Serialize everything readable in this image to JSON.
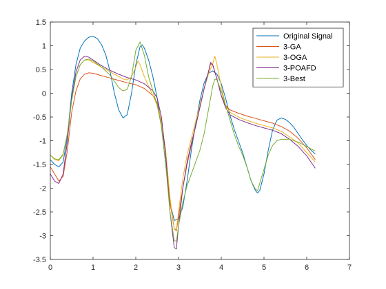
{
  "chart_data": {
    "type": "line",
    "title": "",
    "xlabel": "",
    "ylabel": "",
    "xlim": [
      0,
      7
    ],
    "ylim": [
      -3.5,
      1.5
    ],
    "xticks": [
      0,
      1,
      2,
      3,
      4,
      5,
      6,
      7
    ],
    "yticks": [
      -3.5,
      -3,
      -2.5,
      -2,
      -1.5,
      -1,
      -0.5,
      0,
      0.5,
      1,
      1.5
    ],
    "xtick_labels": [
      "0",
      "1",
      "2",
      "3",
      "4",
      "5",
      "6",
      "7"
    ],
    "ytick_labels": [
      "-3.5",
      "-3",
      "-2.5",
      "-2",
      "-1.5",
      "-1",
      "-0.5",
      "0",
      "0.5",
      "1",
      "1.5"
    ],
    "grid": false,
    "legend_position": "top-right",
    "series": [
      {
        "name": "Original Signal",
        "color": "#0072BD",
        "points": [
          [
            0.0,
            -1.4
          ],
          [
            0.1,
            -1.5
          ],
          [
            0.2,
            -1.55
          ],
          [
            0.3,
            -1.45
          ],
          [
            0.4,
            -0.9
          ],
          [
            0.5,
            0.0
          ],
          [
            0.6,
            0.6
          ],
          [
            0.7,
            0.95
          ],
          [
            0.8,
            1.1
          ],
          [
            0.9,
            1.18
          ],
          [
            1.0,
            1.2
          ],
          [
            1.1,
            1.15
          ],
          [
            1.2,
            1.02
          ],
          [
            1.3,
            0.8
          ],
          [
            1.4,
            0.45
          ],
          [
            1.5,
            0.0
          ],
          [
            1.6,
            -0.35
          ],
          [
            1.7,
            -0.52
          ],
          [
            1.8,
            -0.45
          ],
          [
            1.9,
            0.0
          ],
          [
            2.0,
            0.6
          ],
          [
            2.1,
            0.98
          ],
          [
            2.15,
            1.02
          ],
          [
            2.2,
            0.95
          ],
          [
            2.3,
            0.7
          ],
          [
            2.4,
            0.35
          ],
          [
            2.5,
            -0.1
          ],
          [
            2.6,
            -0.7
          ],
          [
            2.7,
            -1.5
          ],
          [
            2.8,
            -2.3
          ],
          [
            2.9,
            -2.68
          ],
          [
            3.0,
            -2.65
          ],
          [
            3.1,
            -2.4
          ],
          [
            3.2,
            -1.85
          ],
          [
            3.3,
            -1.2
          ],
          [
            3.4,
            -0.65
          ],
          [
            3.5,
            -0.15
          ],
          [
            3.6,
            0.22
          ],
          [
            3.7,
            0.42
          ],
          [
            3.8,
            0.47
          ],
          [
            3.9,
            0.4
          ],
          [
            4.0,
            0.2
          ],
          [
            4.1,
            -0.1
          ],
          [
            4.2,
            -0.45
          ],
          [
            4.3,
            -0.75
          ],
          [
            4.4,
            -1.0
          ],
          [
            4.5,
            -1.25
          ],
          [
            4.6,
            -1.55
          ],
          [
            4.7,
            -1.85
          ],
          [
            4.8,
            -2.05
          ],
          [
            4.85,
            -2.1
          ],
          [
            4.9,
            -2.05
          ],
          [
            5.0,
            -1.7
          ],
          [
            5.1,
            -1.2
          ],
          [
            5.2,
            -0.78
          ],
          [
            5.3,
            -0.57
          ],
          [
            5.4,
            -0.52
          ],
          [
            5.5,
            -0.55
          ],
          [
            5.6,
            -0.62
          ],
          [
            5.7,
            -0.72
          ],
          [
            5.8,
            -0.85
          ],
          [
            5.9,
            -0.98
          ],
          [
            6.0,
            -1.1
          ],
          [
            6.1,
            -1.2
          ],
          [
            6.2,
            -1.28
          ]
        ]
      },
      {
        "name": "3-GA",
        "color": "#D95319",
        "points": [
          [
            0.0,
            -1.55
          ],
          [
            0.1,
            -1.7
          ],
          [
            0.2,
            -1.85
          ],
          [
            0.3,
            -1.75
          ],
          [
            0.4,
            -1.2
          ],
          [
            0.5,
            -0.4
          ],
          [
            0.6,
            0.05
          ],
          [
            0.7,
            0.3
          ],
          [
            0.8,
            0.4
          ],
          [
            0.9,
            0.43
          ],
          [
            1.0,
            0.42
          ],
          [
            1.2,
            0.37
          ],
          [
            1.4,
            0.32
          ],
          [
            1.6,
            0.27
          ],
          [
            1.8,
            0.22
          ],
          [
            2.0,
            0.18
          ],
          [
            2.2,
            0.1
          ],
          [
            2.4,
            -0.05
          ],
          [
            2.5,
            -0.2
          ],
          [
            2.6,
            -0.6
          ],
          [
            2.7,
            -1.3
          ],
          [
            2.8,
            -2.3
          ],
          [
            2.9,
            -2.85
          ],
          [
            2.95,
            -2.9
          ],
          [
            3.0,
            -2.6
          ],
          [
            3.1,
            -2.0
          ],
          [
            3.2,
            -1.5
          ],
          [
            3.3,
            -1.1
          ],
          [
            3.4,
            -0.7
          ],
          [
            3.5,
            -0.3
          ],
          [
            3.6,
            0.1
          ],
          [
            3.7,
            0.45
          ],
          [
            3.75,
            0.62
          ],
          [
            3.8,
            0.6
          ],
          [
            3.9,
            0.3
          ],
          [
            4.0,
            -0.05
          ],
          [
            4.1,
            -0.25
          ],
          [
            4.2,
            -0.35
          ],
          [
            4.4,
            -0.42
          ],
          [
            4.6,
            -0.48
          ],
          [
            4.8,
            -0.53
          ],
          [
            5.0,
            -0.58
          ],
          [
            5.2,
            -0.63
          ],
          [
            5.4,
            -0.7
          ],
          [
            5.6,
            -0.8
          ],
          [
            5.8,
            -0.95
          ],
          [
            6.0,
            -1.15
          ],
          [
            6.2,
            -1.4
          ]
        ]
      },
      {
        "name": "3-OGA",
        "color": "#EDB120",
        "points": [
          [
            0.0,
            -1.3
          ],
          [
            0.1,
            -1.4
          ],
          [
            0.2,
            -1.42
          ],
          [
            0.3,
            -1.3
          ],
          [
            0.4,
            -0.85
          ],
          [
            0.5,
            -0.15
          ],
          [
            0.6,
            0.35
          ],
          [
            0.7,
            0.6
          ],
          [
            0.8,
            0.7
          ],
          [
            0.9,
            0.7
          ],
          [
            1.0,
            0.65
          ],
          [
            1.2,
            0.55
          ],
          [
            1.4,
            0.45
          ],
          [
            1.6,
            0.35
          ],
          [
            1.7,
            0.3
          ],
          [
            1.8,
            0.28
          ],
          [
            1.9,
            0.35
          ],
          [
            2.0,
            0.55
          ],
          [
            2.05,
            0.68
          ],
          [
            2.1,
            0.6
          ],
          [
            2.2,
            0.35
          ],
          [
            2.3,
            0.15
          ],
          [
            2.4,
            -0.05
          ],
          [
            2.5,
            -0.25
          ],
          [
            2.6,
            -0.6
          ],
          [
            2.7,
            -1.2
          ],
          [
            2.8,
            -2.2
          ],
          [
            2.9,
            -2.85
          ],
          [
            2.95,
            -2.87
          ],
          [
            3.0,
            -2.5
          ],
          [
            3.1,
            -1.8
          ],
          [
            3.2,
            -1.3
          ],
          [
            3.3,
            -0.95
          ],
          [
            3.4,
            -0.6
          ],
          [
            3.5,
            -0.25
          ],
          [
            3.6,
            0.1
          ],
          [
            3.7,
            0.4
          ],
          [
            3.8,
            0.62
          ],
          [
            3.85,
            0.78
          ],
          [
            3.9,
            0.6
          ],
          [
            4.0,
            0.15
          ],
          [
            4.1,
            -0.25
          ],
          [
            4.2,
            -0.4
          ],
          [
            4.4,
            -0.5
          ],
          [
            4.6,
            -0.57
          ],
          [
            4.8,
            -0.63
          ],
          [
            5.0,
            -0.68
          ],
          [
            5.2,
            -0.73
          ],
          [
            5.4,
            -0.8
          ],
          [
            5.6,
            -0.92
          ],
          [
            5.8,
            -1.05
          ],
          [
            6.0,
            -1.25
          ],
          [
            6.2,
            -1.45
          ]
        ]
      },
      {
        "name": "3-POAFD",
        "color": "#7E2F8E",
        "points": [
          [
            0.0,
            -1.7
          ],
          [
            0.1,
            -1.85
          ],
          [
            0.2,
            -1.9
          ],
          [
            0.3,
            -1.7
          ],
          [
            0.4,
            -1.0
          ],
          [
            0.5,
            -0.1
          ],
          [
            0.6,
            0.45
          ],
          [
            0.7,
            0.7
          ],
          [
            0.8,
            0.78
          ],
          [
            0.9,
            0.76
          ],
          [
            1.0,
            0.7
          ],
          [
            1.2,
            0.58
          ],
          [
            1.4,
            0.48
          ],
          [
            1.6,
            0.4
          ],
          [
            1.8,
            0.33
          ],
          [
            2.0,
            0.28
          ],
          [
            2.2,
            0.2
          ],
          [
            2.4,
            0.05
          ],
          [
            2.5,
            -0.1
          ],
          [
            2.6,
            -0.5
          ],
          [
            2.7,
            -1.3
          ],
          [
            2.8,
            -2.5
          ],
          [
            2.9,
            -3.25
          ],
          [
            2.95,
            -3.28
          ],
          [
            3.0,
            -2.8
          ],
          [
            3.1,
            -2.0
          ],
          [
            3.2,
            -1.45
          ],
          [
            3.3,
            -1.05
          ],
          [
            3.4,
            -0.7
          ],
          [
            3.5,
            -0.3
          ],
          [
            3.6,
            0.1
          ],
          [
            3.7,
            0.45
          ],
          [
            3.75,
            0.65
          ],
          [
            3.8,
            0.6
          ],
          [
            3.9,
            0.3
          ],
          [
            4.0,
            -0.05
          ],
          [
            4.1,
            -0.3
          ],
          [
            4.2,
            -0.45
          ],
          [
            4.4,
            -0.55
          ],
          [
            4.6,
            -0.62
          ],
          [
            4.8,
            -0.68
          ],
          [
            5.0,
            -0.73
          ],
          [
            5.2,
            -0.78
          ],
          [
            5.4,
            -0.85
          ],
          [
            5.6,
            -0.97
          ],
          [
            5.8,
            -1.12
          ],
          [
            6.0,
            -1.32
          ],
          [
            6.2,
            -1.58
          ]
        ]
      },
      {
        "name": "3-Best",
        "color": "#77AC30",
        "points": [
          [
            0.0,
            -1.3
          ],
          [
            0.1,
            -1.38
          ],
          [
            0.2,
            -1.4
          ],
          [
            0.3,
            -1.28
          ],
          [
            0.4,
            -0.85
          ],
          [
            0.5,
            -0.15
          ],
          [
            0.6,
            0.35
          ],
          [
            0.7,
            0.6
          ],
          [
            0.8,
            0.7
          ],
          [
            0.9,
            0.72
          ],
          [
            1.0,
            0.68
          ],
          [
            1.2,
            0.55
          ],
          [
            1.4,
            0.38
          ],
          [
            1.5,
            0.25
          ],
          [
            1.6,
            0.12
          ],
          [
            1.7,
            0.05
          ],
          [
            1.8,
            0.08
          ],
          [
            1.9,
            0.35
          ],
          [
            2.0,
            0.9
          ],
          [
            2.1,
            1.08
          ],
          [
            2.2,
            0.8
          ],
          [
            2.3,
            0.35
          ],
          [
            2.4,
            0.05
          ],
          [
            2.5,
            -0.25
          ],
          [
            2.6,
            -0.7
          ],
          [
            2.7,
            -1.5
          ],
          [
            2.8,
            -2.5
          ],
          [
            2.9,
            -3.1
          ],
          [
            2.95,
            -3.12
          ],
          [
            3.0,
            -2.8
          ],
          [
            3.1,
            -2.3
          ],
          [
            3.2,
            -1.95
          ],
          [
            3.3,
            -1.7
          ],
          [
            3.4,
            -1.45
          ],
          [
            3.5,
            -1.2
          ],
          [
            3.6,
            -0.85
          ],
          [
            3.7,
            -0.35
          ],
          [
            3.8,
            0.15
          ],
          [
            3.85,
            0.3
          ],
          [
            3.9,
            0.28
          ],
          [
            4.0,
            0.05
          ],
          [
            4.1,
            -0.25
          ],
          [
            4.2,
            -0.55
          ],
          [
            4.3,
            -0.85
          ],
          [
            4.4,
            -1.1
          ],
          [
            4.5,
            -1.3
          ],
          [
            4.6,
            -1.55
          ],
          [
            4.7,
            -1.85
          ],
          [
            4.8,
            -2.02
          ],
          [
            4.85,
            -2.05
          ],
          [
            4.9,
            -1.9
          ],
          [
            5.0,
            -1.6
          ],
          [
            5.1,
            -1.3
          ],
          [
            5.2,
            -1.1
          ],
          [
            5.3,
            -1.0
          ],
          [
            5.4,
            -0.97
          ],
          [
            5.6,
            -0.97
          ],
          [
            5.8,
            -1.03
          ],
          [
            6.0,
            -1.12
          ],
          [
            6.2,
            -1.22
          ]
        ]
      }
    ]
  }
}
